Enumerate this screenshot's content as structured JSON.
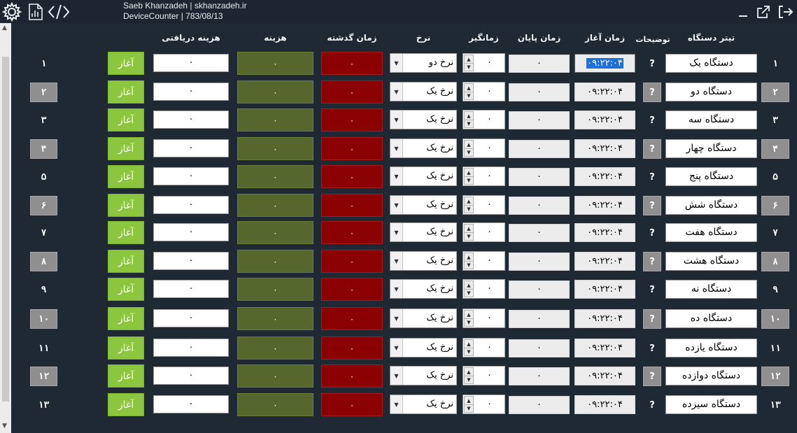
{
  "header": {
    "line1": "Saeb Khanzadeh | skhanzadeh.ir",
    "line2": "DeviceCounter | 783/08/13",
    "icons": [
      "settings-gear-icon",
      "report-icon",
      "code-icon",
      "minimize-icon",
      "external-link-icon",
      "logout-icon"
    ]
  },
  "columns": {
    "title": "تیتر دستگاه",
    "desc": "توضیحات",
    "start": "زمان آغاز",
    "end": "زمان پایان",
    "timer": "زمانگیر",
    "rate": "نرخ",
    "elapsed": "زمان گذشته",
    "cost": "هزینه",
    "received": "هزینه دریافتی"
  },
  "colors": {
    "background": "#1f2933",
    "start_button": "#8bc63e",
    "cost_cell": "#56672e",
    "elapsed_cell": "#8b0000",
    "row_box": "#8f8f8f"
  },
  "rows": [
    {
      "index": "۱",
      "title": "دستگاه یک",
      "desc": "?",
      "start": "۰۹:۲۲:۰۴",
      "end": "۰",
      "timer": "۰",
      "rate": "نرخ دو",
      "elapsed": "۰",
      "cost": "۰",
      "received": "۰",
      "button": "آغاز",
      "num_left": "۱"
    },
    {
      "index": "۲",
      "title": "دستگاه دو",
      "desc": "?",
      "start": "۰۹:۲۲:۰۴",
      "end": "۰",
      "timer": "۰",
      "rate": "نرخ یک",
      "elapsed": "۰",
      "cost": "۰",
      "received": "۰",
      "button": "آغاز",
      "num_left": "۲"
    },
    {
      "index": "۳",
      "title": "دستگاه سه",
      "desc": "?",
      "start": "۰۹:۲۲:۰۴",
      "end": "۰",
      "timer": "۰",
      "rate": "نرخ یک",
      "elapsed": "۰",
      "cost": "۰",
      "received": "۰",
      "button": "آغاز",
      "num_left": "۳"
    },
    {
      "index": "۴",
      "title": "دستگاه چهار",
      "desc": "?",
      "start": "۰۹:۲۲:۰۴",
      "end": "۰",
      "timer": "۰",
      "rate": "نرخ یک",
      "elapsed": "۰",
      "cost": "۰",
      "received": "۰",
      "button": "آغاز",
      "num_left": "۴"
    },
    {
      "index": "۵",
      "title": "دستگاه پنج",
      "desc": "?",
      "start": "۰۹:۲۲:۰۴",
      "end": "۰",
      "timer": "۰",
      "rate": "نرخ یک",
      "elapsed": "۰",
      "cost": "۰",
      "received": "۰",
      "button": "آغاز",
      "num_left": "۵"
    },
    {
      "index": "۶",
      "title": "دستگاه شش",
      "desc": "?",
      "start": "۰۹:۲۲:۰۴",
      "end": "۰",
      "timer": "۰",
      "rate": "نرخ یک",
      "elapsed": "۰",
      "cost": "۰",
      "received": "۰",
      "button": "آغاز",
      "num_left": "۶"
    },
    {
      "index": "۷",
      "title": "دستگاه هفت",
      "desc": "?",
      "start": "۰۹:۲۲:۰۴",
      "end": "۰",
      "timer": "۰",
      "rate": "نرخ یک",
      "elapsed": "۰",
      "cost": "۰",
      "received": "۰",
      "button": "آغاز",
      "num_left": "۷"
    },
    {
      "index": "۸",
      "title": "دستگاه هشت",
      "desc": "?",
      "start": "۰۹:۲۲:۰۴",
      "end": "۰",
      "timer": "۰",
      "rate": "نرخ یک",
      "elapsed": "۰",
      "cost": "۰",
      "received": "۰",
      "button": "آغاز",
      "num_left": "۸"
    },
    {
      "index": "۹",
      "title": "دستگاه نه",
      "desc": "?",
      "start": "۰۹:۲۲:۰۴",
      "end": "۰",
      "timer": "۰",
      "rate": "نرخ یک",
      "elapsed": "۰",
      "cost": "۰",
      "received": "۰",
      "button": "آغاز",
      "num_left": "۹"
    },
    {
      "index": "۱۰",
      "title": "دستگاه ده",
      "desc": "?",
      "start": "۰۹:۲۲:۰۴",
      "end": "۰",
      "timer": "۰",
      "rate": "نرخ یک",
      "elapsed": "۰",
      "cost": "۰",
      "received": "۰",
      "button": "آغاز",
      "num_left": "۱۰"
    },
    {
      "index": "۱۱",
      "title": "دستگاه یازده",
      "desc": "?",
      "start": "۰۹:۲۲:۰۴",
      "end": "۰",
      "timer": "۰",
      "rate": "نرخ یک",
      "elapsed": "۰",
      "cost": "۰",
      "received": "۰",
      "button": "آغاز",
      "num_left": "۱۱"
    },
    {
      "index": "۱۲",
      "title": "دستگاه دوازده",
      "desc": "?",
      "start": "۰۹:۲۲:۰۴",
      "end": "۰",
      "timer": "۰",
      "rate": "نرخ یک",
      "elapsed": "۰",
      "cost": "۰",
      "received": "۰",
      "button": "آغاز",
      "num_left": "۱۲"
    },
    {
      "index": "۱۳",
      "title": "دستگاه  سیزده",
      "desc": "?",
      "start": "۰۹:۲۲:۰۴",
      "end": "۰",
      "timer": "۰",
      "rate": "نرخ یک",
      "elapsed": "۰",
      "cost": "۰",
      "received": "۰",
      "button": "آغاز",
      "num_left": "۱۳"
    }
  ]
}
